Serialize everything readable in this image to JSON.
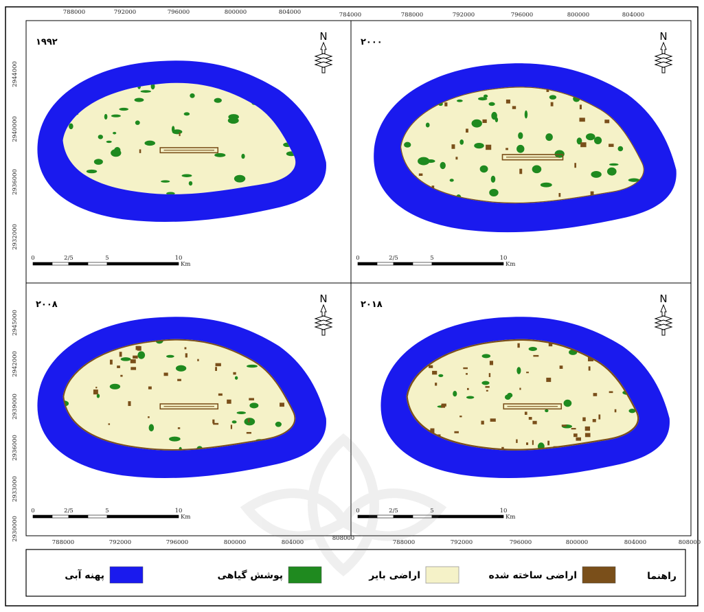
{
  "x_ticks_left": [
    "788000",
    "792000",
    "796000",
    "800000",
    "804000"
  ],
  "x_ticks_right": [
    "784000",
    "788000",
    "792000",
    "796000",
    "800000",
    "804000"
  ],
  "x_tick_bottom_corner": "808000",
  "y_ticks_top": [
    "2944000",
    "2940000",
    "2936000",
    "2932000"
  ],
  "y_ticks_bottom": [
    "2945000",
    "2942000",
    "2939000",
    "2936000",
    "2933000",
    "2930000"
  ],
  "scalebar": {
    "labels": [
      "0",
      "2/5",
      "5",
      "10"
    ],
    "unit": "Km"
  },
  "north_label": "N",
  "panels": [
    {
      "year": "۱۹۹۲"
    },
    {
      "year": "۲۰۰۰"
    },
    {
      "year": "۲۰۰۸"
    },
    {
      "year": "۲۰۱۸"
    }
  ],
  "legend": {
    "title": "راهنما",
    "items": [
      {
        "label": "پهنه آبی",
        "color": "#1a1aee"
      },
      {
        "label": "پوشش گیاهی",
        "color": "#1f8a1f"
      },
      {
        "label": "اراضی بایر",
        "color": "#f5f2c8"
      },
      {
        "label": "اراضی ساخته شده",
        "color": "#7a4f1a"
      }
    ]
  }
}
